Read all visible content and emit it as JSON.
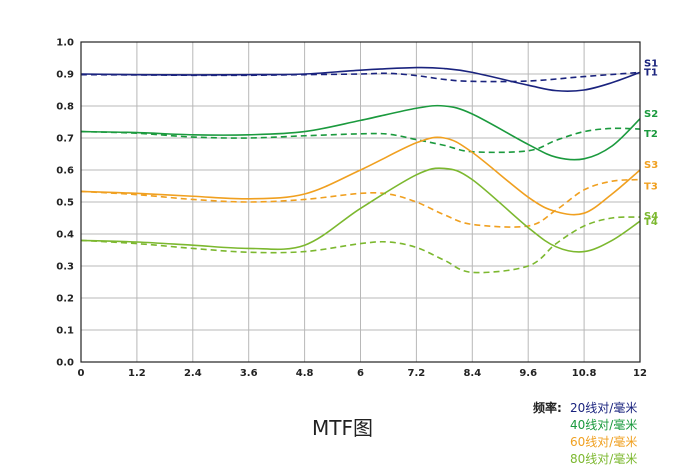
{
  "chart_data": {
    "type": "line",
    "title": "MTF图",
    "xlim": [
      0,
      12
    ],
    "ylim": [
      0,
      1
    ],
    "x_ticks": [
      "0",
      "1.2",
      "2.4",
      "3.6",
      "4.8",
      "6",
      "7.2",
      "8.4",
      "9.6",
      "10.8",
      "12"
    ],
    "y_ticks": [
      "0.0",
      "0.1",
      "0.2",
      "0.3",
      "0.4",
      "0.5",
      "0.6",
      "0.7",
      "0.8",
      "0.9",
      "1.0"
    ],
    "grid": true,
    "series": [
      {
        "name": "S1",
        "color": "#1a237e",
        "style": "solid",
        "x": [
          0,
          1.2,
          2.4,
          3.6,
          4.8,
          6,
          7.2,
          7.8,
          8.4,
          9.6,
          10.2,
          10.8,
          11.4,
          12
        ],
        "y": [
          0.9,
          0.898,
          0.897,
          0.898,
          0.9,
          0.912,
          0.92,
          0.917,
          0.905,
          0.865,
          0.848,
          0.85,
          0.873,
          0.905
        ]
      },
      {
        "name": "T1",
        "color": "#1a237e",
        "style": "dashed",
        "x": [
          0,
          1.2,
          2.4,
          3.6,
          4.8,
          6,
          6.6,
          7.2,
          7.8,
          8.4,
          9.6,
          10.8,
          12
        ],
        "y": [
          0.898,
          0.897,
          0.896,
          0.896,
          0.898,
          0.9,
          0.902,
          0.895,
          0.883,
          0.877,
          0.878,
          0.892,
          0.905
        ]
      },
      {
        "name": "S2",
        "color": "#1b9a3e",
        "style": "solid",
        "x": [
          0,
          1.2,
          2.4,
          3.6,
          4.8,
          6,
          7.2,
          7.8,
          8.4,
          9.6,
          10.2,
          10.8,
          11.4,
          12
        ],
        "y": [
          0.72,
          0.717,
          0.71,
          0.71,
          0.72,
          0.755,
          0.793,
          0.8,
          0.775,
          0.68,
          0.64,
          0.635,
          0.675,
          0.76
        ]
      },
      {
        "name": "T2",
        "color": "#1b9a3e",
        "style": "dashed",
        "x": [
          0,
          1.2,
          2.4,
          3.6,
          4.8,
          6,
          6.6,
          7.2,
          7.8,
          8.4,
          9.6,
          10.2,
          10.8,
          11.4,
          12
        ],
        "y": [
          0.72,
          0.715,
          0.703,
          0.7,
          0.707,
          0.713,
          0.712,
          0.695,
          0.677,
          0.657,
          0.66,
          0.693,
          0.72,
          0.73,
          0.728
        ]
      },
      {
        "name": "S3",
        "color": "#f0a020",
        "style": "solid",
        "x": [
          0,
          1.2,
          2.4,
          3.6,
          4.8,
          6,
          7.2,
          7.8,
          8.4,
          9.6,
          10.2,
          10.8,
          11.4,
          12
        ],
        "y": [
          0.533,
          0.527,
          0.518,
          0.51,
          0.525,
          0.6,
          0.685,
          0.7,
          0.655,
          0.515,
          0.47,
          0.465,
          0.525,
          0.6
        ]
      },
      {
        "name": "T3",
        "color": "#f0a020",
        "style": "dashed",
        "x": [
          0,
          1.2,
          2.4,
          3.6,
          4.8,
          6,
          6.6,
          7.2,
          7.8,
          8.4,
          9.6,
          10.2,
          10.8,
          11.4,
          12
        ],
        "y": [
          0.533,
          0.523,
          0.508,
          0.5,
          0.508,
          0.527,
          0.525,
          0.5,
          0.46,
          0.43,
          0.425,
          0.475,
          0.538,
          0.565,
          0.57
        ]
      },
      {
        "name": "S4",
        "color": "#7cb82f",
        "style": "solid",
        "x": [
          0,
          1.2,
          2.4,
          3.6,
          4.8,
          6,
          7.2,
          7.8,
          8.4,
          9.6,
          10.2,
          10.8,
          11.4,
          12
        ],
        "y": [
          0.38,
          0.375,
          0.365,
          0.355,
          0.365,
          0.48,
          0.585,
          0.605,
          0.57,
          0.42,
          0.36,
          0.345,
          0.38,
          0.44
        ]
      },
      {
        "name": "T4",
        "color": "#7cb82f",
        "style": "dashed",
        "x": [
          0,
          1.2,
          2.4,
          3.6,
          4.8,
          6,
          6.6,
          7.2,
          7.8,
          8.4,
          9.6,
          10.2,
          10.8,
          11.4,
          12
        ],
        "y": [
          0.38,
          0.37,
          0.355,
          0.343,
          0.345,
          0.37,
          0.375,
          0.358,
          0.318,
          0.28,
          0.3,
          0.37,
          0.425,
          0.45,
          0.453
        ]
      }
    ],
    "legend": {
      "title": "频率:",
      "placement": "bottom-right",
      "items": [
        {
          "label": "20线对/毫米",
          "color": "#1a237e"
        },
        {
          "label": "40线对/毫米",
          "color": "#1b9a3e"
        },
        {
          "label": "60线对/毫米",
          "color": "#f0a020"
        },
        {
          "label": "80线对/毫米",
          "color": "#7cb82f"
        }
      ]
    }
  }
}
